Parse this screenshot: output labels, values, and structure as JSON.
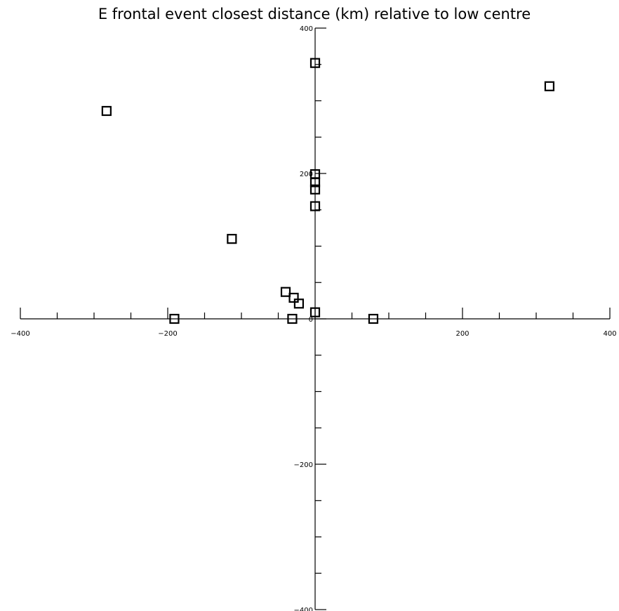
{
  "chart_data": {
    "type": "scatter",
    "title": "E frontal event closest distance (km) relative to low centre",
    "xlabel": "",
    "ylabel": "",
    "xlim": [
      -400,
      400
    ],
    "ylim": [
      -400,
      400
    ],
    "grid": false,
    "marker": "open-square",
    "x_tick_labels": [
      "-400",
      "-200",
      "0",
      "200",
      "400"
    ],
    "y_tick_labels": [
      "-400",
      "-200",
      "0",
      "200",
      "400"
    ],
    "x_tick_values": [
      -400,
      -200,
      0,
      200,
      400
    ],
    "y_tick_values": [
      -400,
      -200,
      0,
      200,
      400
    ],
    "minor_tick_step": 50,
    "points": [
      {
        "x": 0,
        "y": 352
      },
      {
        "x": 318,
        "y": 320
      },
      {
        "x": -283,
        "y": 286
      },
      {
        "x": 0,
        "y": 199
      },
      {
        "x": 0,
        "y": 188
      },
      {
        "x": 0,
        "y": 178
      },
      {
        "x": 0,
        "y": 155
      },
      {
        "x": -113,
        "y": 110
      },
      {
        "x": -40,
        "y": 37
      },
      {
        "x": -29,
        "y": 29
      },
      {
        "x": -22,
        "y": 21
      },
      {
        "x": 0,
        "y": 9
      },
      {
        "x": -191,
        "y": 0
      },
      {
        "x": -31,
        "y": 0
      },
      {
        "x": 79,
        "y": 0
      }
    ]
  }
}
